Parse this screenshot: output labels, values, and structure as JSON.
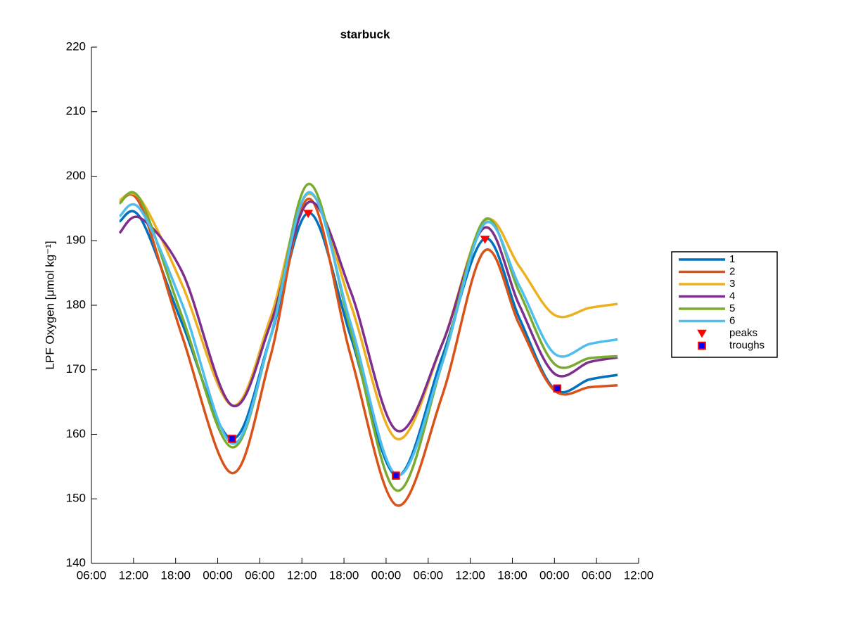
{
  "chart_data": {
    "type": "line",
    "title": "starbuck",
    "ylabel": "LPF Oxygen [μmol kg⁻¹]",
    "x": [
      4,
      7,
      13,
      20,
      25.5,
      31,
      37,
      43.5,
      50,
      56,
      61,
      66,
      71,
      75
    ],
    "series": [
      {
        "name": "1",
        "color": "#0072bd",
        "values": [
          193,
          193.5,
          177,
          159.3,
          175,
          194.3,
          175,
          153.6,
          172,
          190.3,
          178,
          167,
          168.5,
          169.2
        ]
      },
      {
        "name": "2",
        "color": "#d95319",
        "values": [
          196,
          195.5,
          175,
          154,
          172,
          196.5,
          172,
          149,
          166,
          188.4,
          177,
          166.8,
          167.3,
          167.6
        ]
      },
      {
        "name": "3",
        "color": "#edb120",
        "values": [
          196.3,
          196.4,
          183,
          164.5,
          178,
          197.3,
          180,
          159.3,
          174,
          193,
          186,
          178.5,
          179.6,
          180.2
        ]
      },
      {
        "name": "4",
        "color": "#7e2f8e",
        "values": [
          191.2,
          193.5,
          185,
          164.5,
          177,
          196,
          182,
          160.6,
          174,
          192,
          180,
          169.4,
          171.2,
          171.9
        ]
      },
      {
        "name": "5",
        "color": "#77ac30",
        "values": [
          195.8,
          196.3,
          178,
          158,
          175,
          198.8,
          176,
          151.3,
          171,
          193.2,
          182,
          170.9,
          171.8,
          172.1
        ]
      },
      {
        "name": "6",
        "color": "#4dbeee",
        "values": [
          193.8,
          194.8,
          180,
          158.6,
          175,
          197.5,
          177,
          153.7,
          171,
          192.6,
          183,
          172.5,
          174,
          174.7
        ]
      }
    ],
    "markers": [
      {
        "name": "peaks",
        "marker": "triangle-down",
        "color": "#ff0000",
        "edgecolor": "#ff0000",
        "x": [
          30.9,
          56.1
        ],
        "values": [
          194.2,
          190.2
        ]
      },
      {
        "name": "troughs",
        "marker": "square",
        "color": "#0000ff",
        "edgecolor": "#ff0000",
        "x": [
          20.05,
          43.4,
          66.4
        ],
        "values": [
          159.3,
          153.6,
          167.1
        ]
      }
    ],
    "xlim": [
      0,
      78
    ],
    "xticks": [
      {
        "value": 0,
        "label": "06:00"
      },
      {
        "value": 6,
        "label": "12:00"
      },
      {
        "value": 12,
        "label": "18:00"
      },
      {
        "value": 18,
        "label": "00:00"
      },
      {
        "value": 24,
        "label": "06:00"
      },
      {
        "value": 30,
        "label": "12:00"
      },
      {
        "value": 36,
        "label": "18:00"
      },
      {
        "value": 42,
        "label": "00:00"
      },
      {
        "value": 48,
        "label": "06:00"
      },
      {
        "value": 54,
        "label": "12:00"
      },
      {
        "value": 60,
        "label": "18:00"
      },
      {
        "value": 66,
        "label": "00:00"
      },
      {
        "value": 72,
        "label": "06:00"
      },
      {
        "value": 78,
        "label": "12:00"
      }
    ],
    "ylim": [
      140,
      220
    ],
    "yticks": [
      140,
      150,
      160,
      170,
      180,
      190,
      200,
      210,
      220
    ],
    "grid": false,
    "legend": "outside-right"
  }
}
